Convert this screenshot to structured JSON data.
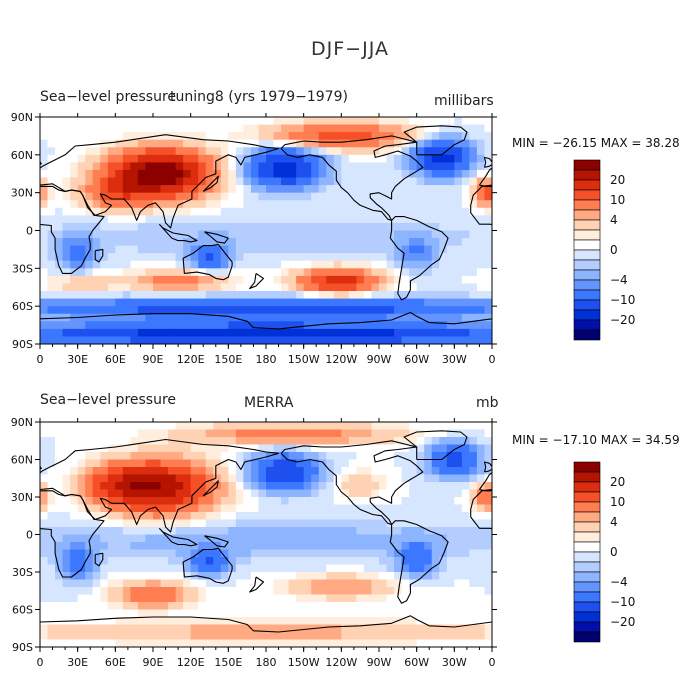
{
  "figure": {
    "title": "DJF−JJA"
  },
  "colors": {
    "levels": [
      "#00006e",
      "#0010a8",
      "#0030d8",
      "#1e50f0",
      "#3c78ff",
      "#6495ff",
      "#8cb4ff",
      "#b4cdff",
      "#d7e6ff",
      "#ffffff",
      "#ffeedd",
      "#ffd2b4",
      "#ffaa82",
      "#ff7d50",
      "#f55028",
      "#dc2d0f",
      "#b41400",
      "#8c0000"
    ],
    "coast": "#000000"
  },
  "chart_data": [
    {
      "type": "heatmap",
      "title": "Sea−level pressure",
      "center_label": "tuning8 (yrs 1979−1979)",
      "units": "millibars",
      "stats": "MIN = −26.15  MAX =  38.28",
      "min": -26.15,
      "max": 38.28,
      "x_ticks": [
        "0",
        "30E",
        "60E",
        "90E",
        "120E",
        "150E",
        "180",
        "150W",
        "120W",
        "90W",
        "60W",
        "30W",
        "0"
      ],
      "y_ticks": [
        "90N",
        "60N",
        "30N",
        "0",
        "30S",
        "60S",
        "90S"
      ],
      "colorbar_labels": [
        "20",
        "10",
        "4",
        "0",
        "−4",
        "−10",
        "−20"
      ],
      "features": [
        {
          "lon": 95,
          "lat": 45,
          "amp": 30,
          "rlon": 38,
          "rlat": 18
        },
        {
          "lon": 60,
          "lat": 30,
          "amp": 10,
          "rlon": 25,
          "rlat": 12
        },
        {
          "lon": 195,
          "lat": 50,
          "amp": -18,
          "rlon": 28,
          "rlat": 15
        },
        {
          "lon": 320,
          "lat": 58,
          "amp": -17,
          "rlon": 22,
          "rlat": 14
        },
        {
          "lon": 240,
          "lat": 75,
          "amp": 12,
          "rlon": 55,
          "rlat": 10
        },
        {
          "lon": 238,
          "lat": -40,
          "amp": 18,
          "rlon": 30,
          "rlat": 9
        },
        {
          "lon": 110,
          "lat": -40,
          "amp": 8,
          "rlon": 35,
          "rlat": 8
        },
        {
          "lon": 35,
          "lat": -42,
          "amp": 4,
          "rlon": 25,
          "rlat": 7
        },
        {
          "lon": 30,
          "lat": -18,
          "amp": -7,
          "rlon": 14,
          "rlat": 14
        },
        {
          "lon": 135,
          "lat": -22,
          "amp": -10,
          "rlon": 15,
          "rlat": 10
        },
        {
          "lon": 300,
          "lat": -18,
          "amp": -6,
          "rlon": 14,
          "rlat": 14
        },
        {
          "lon": 355,
          "lat": 30,
          "amp": 12,
          "rlon": 10,
          "rlat": 10
        },
        {
          "lon": 180,
          "lat": -82,
          "amp": -20,
          "rlon": 200,
          "rlat": 8
        },
        {
          "lon": 180,
          "lat": -62,
          "amp": -13,
          "rlon": 200,
          "rlat": 8
        },
        {
          "lon": 180,
          "lat": -5,
          "amp": -2,
          "rlon": 200,
          "rlat": 15
        }
      ]
    },
    {
      "type": "heatmap",
      "title": "Sea−level pressure",
      "center_label": "MERRA",
      "units": "mb",
      "stats": "MIN = −17.10  MAX =  34.59",
      "min": -17.1,
      "max": 34.59,
      "x_ticks": [
        "0",
        "30E",
        "60E",
        "90E",
        "120E",
        "150E",
        "180",
        "150W",
        "120W",
        "90W",
        "60W",
        "30W",
        "0"
      ],
      "y_ticks": [
        "90N",
        "60N",
        "30N",
        "0",
        "30S",
        "60S",
        "90S"
      ],
      "colorbar_labels": [
        "20",
        "10",
        "4",
        "0",
        "−4",
        "−10",
        "−20"
      ],
      "features": [
        {
          "lon": 95,
          "lat": 38,
          "amp": 24,
          "rlon": 40,
          "rlat": 20
        },
        {
          "lon": 60,
          "lat": 40,
          "amp": 10,
          "rlon": 25,
          "rlat": 14
        },
        {
          "lon": 195,
          "lat": 50,
          "amp": -15,
          "rlon": 26,
          "rlat": 14
        },
        {
          "lon": 330,
          "lat": 60,
          "amp": -12,
          "rlon": 20,
          "rlat": 13
        },
        {
          "lon": 200,
          "lat": 80,
          "amp": 8,
          "rlon": 80,
          "rlat": 8
        },
        {
          "lon": 255,
          "lat": 40,
          "amp": 4,
          "rlon": 18,
          "rlat": 10
        },
        {
          "lon": 90,
          "lat": -48,
          "amp": 10,
          "rlon": 28,
          "rlat": 10
        },
        {
          "lon": 240,
          "lat": -42,
          "amp": 6,
          "rlon": 40,
          "rlat": 9
        },
        {
          "lon": 30,
          "lat": -22,
          "amp": -8,
          "rlon": 14,
          "rlat": 14
        },
        {
          "lon": 135,
          "lat": -22,
          "amp": -10,
          "rlon": 15,
          "rlat": 10
        },
        {
          "lon": 300,
          "lat": -20,
          "amp": -8,
          "rlon": 15,
          "rlat": 14
        },
        {
          "lon": 355,
          "lat": 30,
          "amp": 10,
          "rlon": 10,
          "rlat": 10
        },
        {
          "lon": 180,
          "lat": -78,
          "amp": 5,
          "rlon": 200,
          "rlat": 8
        },
        {
          "lon": 180,
          "lat": -5,
          "amp": -3,
          "rlon": 200,
          "rlat": 15
        }
      ]
    }
  ]
}
